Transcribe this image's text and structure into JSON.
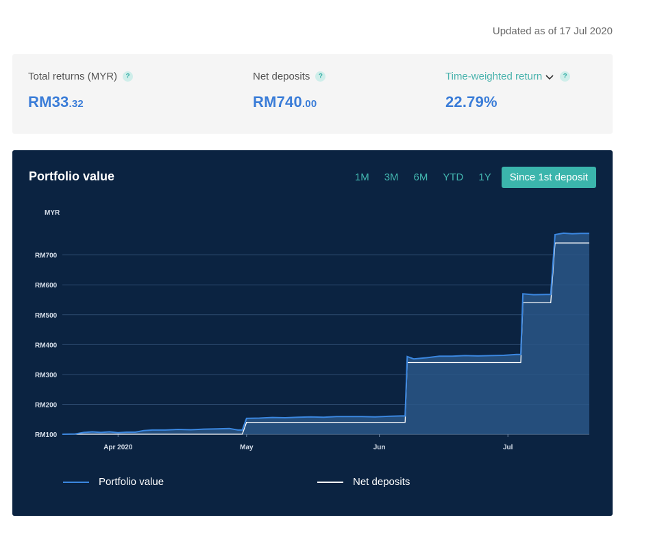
{
  "updated_text": "Updated as of 17 Jul 2020",
  "summary": {
    "total_returns": {
      "label": "Total returns (MYR)",
      "value_main": "RM33",
      "value_cents": ".32"
    },
    "net_deposits": {
      "label": "Net deposits",
      "value_main": "RM740",
      "value_cents": ".00"
    },
    "twr": {
      "label": "Time-weighted return",
      "value": "22.79%"
    },
    "help_glyph": "?"
  },
  "panel": {
    "title": "Portfolio value",
    "ranges": [
      "1M",
      "3M",
      "6M",
      "YTD",
      "1Y",
      "Since 1st deposit"
    ],
    "active_range": "Since 1st deposit"
  },
  "colors": {
    "panel_bg": "#0b2341",
    "portfolio_line": "#3b87e0",
    "deposits_line": "#ffffff",
    "accent": "#3bb5ac"
  },
  "chart_data": {
    "type": "area",
    "y_unit_label": "MYR",
    "y_ticks": [
      "RM100",
      "RM200",
      "RM300",
      "RM400",
      "RM500",
      "RM600",
      "RM700"
    ],
    "ylim": [
      100,
      775
    ],
    "x_ticks": [
      {
        "label": "Apr 2020",
        "day": 13
      },
      {
        "label": "May",
        "day": 43
      },
      {
        "label": "Jun",
        "day": 74
      },
      {
        "label": "Jul",
        "day": 104
      }
    ],
    "xlim": [
      0,
      123
    ],
    "series": [
      {
        "name": "Portfolio value",
        "points": [
          [
            0,
            100
          ],
          [
            3,
            101
          ],
          [
            5,
            106
          ],
          [
            7,
            108
          ],
          [
            9,
            106
          ],
          [
            11,
            108
          ],
          [
            13,
            105
          ],
          [
            15,
            107
          ],
          [
            17,
            107
          ],
          [
            19,
            112
          ],
          [
            21,
            114
          ],
          [
            24,
            114
          ],
          [
            27,
            116
          ],
          [
            30,
            115
          ],
          [
            33,
            117
          ],
          [
            36,
            118
          ],
          [
            39,
            119
          ],
          [
            41,
            114
          ],
          [
            42,
            114
          ],
          [
            43,
            153
          ],
          [
            46,
            154
          ],
          [
            49,
            156
          ],
          [
            52,
            155
          ],
          [
            55,
            157
          ],
          [
            58,
            158
          ],
          [
            61,
            157
          ],
          [
            64,
            159
          ],
          [
            67,
            159
          ],
          [
            70,
            159
          ],
          [
            73,
            158
          ],
          [
            76,
            160
          ],
          [
            79,
            161
          ],
          [
            80,
            161
          ],
          [
            80.5,
            360
          ],
          [
            82,
            352
          ],
          [
            85,
            356
          ],
          [
            88,
            361
          ],
          [
            91,
            361
          ],
          [
            94,
            363
          ],
          [
            97,
            362
          ],
          [
            100,
            363
          ],
          [
            103,
            364
          ],
          [
            106,
            367
          ],
          [
            107,
            367
          ],
          [
            107.5,
            570
          ],
          [
            110,
            567
          ],
          [
            113,
            568
          ],
          [
            114,
            568
          ],
          [
            115,
            768
          ],
          [
            117,
            773
          ],
          [
            119,
            771
          ],
          [
            121,
            772
          ],
          [
            123,
            772
          ]
        ]
      },
      {
        "name": "Net deposits",
        "points": [
          [
            0,
            100
          ],
          [
            42,
            100
          ],
          [
            43,
            140
          ],
          [
            80,
            140
          ],
          [
            80.5,
            340
          ],
          [
            107,
            340
          ],
          [
            107.5,
            540
          ],
          [
            114,
            540
          ],
          [
            115,
            740
          ],
          [
            123,
            740
          ]
        ]
      }
    ],
    "grid": true,
    "legend_position": "bottom"
  },
  "legend": {
    "portfolio_label": "Portfolio value",
    "deposits_label": "Net deposits"
  }
}
